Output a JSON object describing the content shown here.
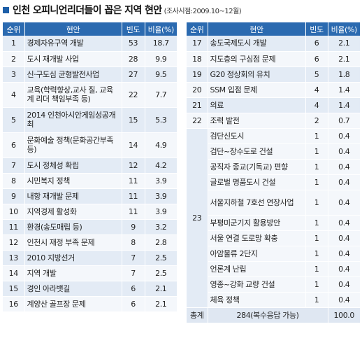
{
  "title": "인천 오피니언리더들이 꼽은 지역 현안",
  "title_note": "(조사시점:2009.10~12월)",
  "columns": {
    "rank": "순위",
    "issue": "현안",
    "freq": "빈도",
    "pct": "비율(%)"
  },
  "left_rows": [
    {
      "rank": "1",
      "issue": "경제자유구역 개발",
      "freq": "53",
      "pct": "18.7"
    },
    {
      "rank": "2",
      "issue": "도시 재개발 사업",
      "freq": "28",
      "pct": "9.9"
    },
    {
      "rank": "3",
      "issue": "신·구도심 균형발전사업",
      "freq": "27",
      "pct": "9.5"
    },
    {
      "rank": "4",
      "issue": "교육(학력향상,교사 질, 교육계 리더 책임부족 등)",
      "freq": "22",
      "pct": "7.7"
    },
    {
      "rank": "5",
      "issue": "2014 인천아시안게임성공개최",
      "freq": "15",
      "pct": "5.3"
    },
    {
      "rank": "6",
      "issue": "문화예술 정책(문화공간부족등)",
      "freq": "14",
      "pct": "4.9"
    },
    {
      "rank": "7",
      "issue": "도시 정체성 확립",
      "freq": "12",
      "pct": "4.2"
    },
    {
      "rank": "8",
      "issue": "시민복지 정책",
      "freq": "11",
      "pct": "3.9"
    },
    {
      "rank": "9",
      "issue": "내항 재개발 문제",
      "freq": "11",
      "pct": "3.9"
    },
    {
      "rank": "10",
      "issue": "지역경제 활성화",
      "freq": "11",
      "pct": "3.9"
    },
    {
      "rank": "11",
      "issue": "환경(송도매립 등)",
      "freq": "9",
      "pct": "3.2"
    },
    {
      "rank": "12",
      "issue": "인천시 재정 부족 문제",
      "freq": "8",
      "pct": "2.8"
    },
    {
      "rank": "13",
      "issue": "2010 지방선거",
      "freq": "7",
      "pct": "2.5"
    },
    {
      "rank": "14",
      "issue": "지역 개발",
      "freq": "7",
      "pct": "2.5"
    },
    {
      "rank": "15",
      "issue": "경인 아라뱃길",
      "freq": "6",
      "pct": "2.1"
    },
    {
      "rank": "16",
      "issue": "계양산 골프장 문제",
      "freq": "6",
      "pct": "2.1"
    }
  ],
  "right_rows": [
    {
      "rank": "17",
      "issue": "송도국제도시 개발",
      "freq": "6",
      "pct": "2.1"
    },
    {
      "rank": "18",
      "issue": "지도층의 구심점 문제",
      "freq": "6",
      "pct": "2.1"
    },
    {
      "rank": "19",
      "issue": "G20 정상회의 유치",
      "freq": "5",
      "pct": "1.8"
    },
    {
      "rank": "20",
      "issue": "SSM 입점 문제",
      "freq": "4",
      "pct": "1.4"
    },
    {
      "rank": "21",
      "issue": "의료",
      "freq": "4",
      "pct": "1.4"
    },
    {
      "rank": "22",
      "issue": "조력 발전",
      "freq": "2",
      "pct": "0.7"
    }
  ],
  "rank23": {
    "rank": "23",
    "items": [
      {
        "issue": "검단신도시",
        "freq": "1",
        "pct": "0.4"
      },
      {
        "issue": "검단~장수도로 건설",
        "freq": "1",
        "pct": "0.4"
      },
      {
        "issue": "공직자 종교(기독교) 편향",
        "freq": "1",
        "pct": "0.4"
      },
      {
        "issue": "글로벌 명품도시 건설",
        "freq": "1",
        "pct": "0.4"
      },
      {
        "issue": "서울지하철 7호선 연장사업",
        "freq": "1",
        "pct": "0.4"
      },
      {
        "issue": "부평미군기지 활용방안",
        "freq": "1",
        "pct": "0.4"
      },
      {
        "issue": "서울 연결 도로망 확충",
        "freq": "1",
        "pct": "0.4"
      },
      {
        "issue": "아암물류 2단지",
        "freq": "1",
        "pct": "0.4"
      },
      {
        "issue": "언론계 난립",
        "freq": "1",
        "pct": "0.4"
      },
      {
        "issue": "영종~강화 교량 건설",
        "freq": "1",
        "pct": "0.4"
      },
      {
        "issue": "체육 정책",
        "freq": "1",
        "pct": "0.4"
      }
    ]
  },
  "total": {
    "label": "총계",
    "freq": "284(복수응답 가능)",
    "pct": "100.0"
  }
}
